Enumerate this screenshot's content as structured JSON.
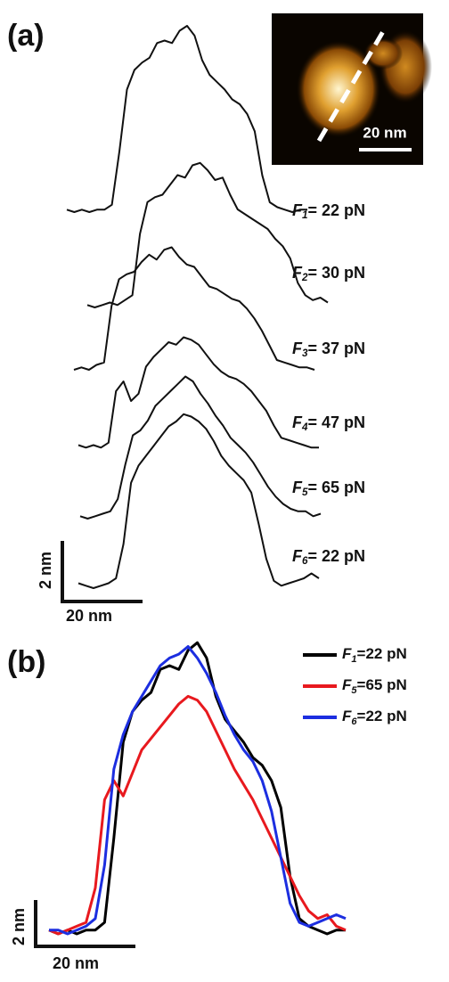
{
  "chart_data": [
    {
      "type": "profile-stack",
      "panel_label": "(a)",
      "scale_bar_y": "2 nm",
      "scale_bar_x": "20 nm",
      "inset_scale_bar": "20 nm",
      "series": [
        {
          "label": {
            "symbol": "F",
            "subscript": "1",
            "text": "= 22 pN"
          },
          "color": "#111111",
          "values": [
            0.1,
            0,
            0.1,
            0,
            0.1,
            0.1,
            0.3,
            2.5,
            5.0,
            5.8,
            6.1,
            6.3,
            6.9,
            7.0,
            6.9,
            7.4,
            7.6,
            7.2,
            6.2,
            5.6,
            5.3,
            5.0,
            4.6,
            4.4,
            4.0,
            3.3,
            1.5,
            0.4,
            0.2,
            0.1,
            0,
            0.1,
            0.1
          ]
        },
        {
          "label": {
            "symbol": "F",
            "subscript": "2",
            "text": "= 30 pN"
          },
          "color": "#111111",
          "values": [
            0.1,
            0,
            0.1,
            0.2,
            0.1,
            0.3,
            0.5,
            3.0,
            4.3,
            4.5,
            4.6,
            5.0,
            5.4,
            5.3,
            5.8,
            5.9,
            5.6,
            5.2,
            5.3,
            4.6,
            4.0,
            3.8,
            3.6,
            3.4,
            3.2,
            2.8,
            2.5,
            2.0,
            1.0,
            0.5,
            0.3,
            0.4,
            0.2
          ]
        },
        {
          "label": {
            "symbol": "F",
            "subscript": "3",
            "text": "= 37 pN"
          },
          "color": "#111111",
          "values": [
            0,
            0.1,
            0,
            0.2,
            0.3,
            2.6,
            3.7,
            3.9,
            4.0,
            4.4,
            4.7,
            4.5,
            4.9,
            5.0,
            4.6,
            4.3,
            4.2,
            3.8,
            3.4,
            3.3,
            3.1,
            2.9,
            2.8,
            2.5,
            2.1,
            1.6,
            1.0,
            0.4,
            0.3,
            0.2,
            0.1,
            0.1,
            0
          ]
        },
        {
          "label": {
            "symbol": "F",
            "subscript": "4",
            "text": "= 47 pN"
          },
          "color": "#111111",
          "values": [
            0.2,
            0.1,
            0.2,
            0.1,
            0.3,
            2.4,
            2.8,
            2.0,
            2.3,
            3.4,
            3.8,
            4.1,
            4.4,
            4.3,
            4.6,
            4.5,
            4.3,
            3.9,
            3.5,
            3.2,
            3.0,
            2.9,
            2.7,
            2.4,
            2.0,
            1.6,
            1.0,
            0.5,
            0.4,
            0.3,
            0.2,
            0.1,
            0.1
          ]
        },
        {
          "label": {
            "symbol": "F",
            "subscript": "5",
            "text": "= 65 pN"
          },
          "color": "#111111",
          "values": [
            0.1,
            0,
            0.1,
            0.2,
            0.3,
            0.8,
            2.2,
            3.4,
            3.6,
            4.0,
            4.6,
            4.9,
            5.2,
            5.5,
            5.8,
            5.6,
            5.1,
            4.7,
            4.2,
            3.8,
            3.3,
            3.0,
            2.7,
            2.3,
            1.8,
            1.3,
            0.9,
            0.6,
            0.4,
            0.3,
            0.3,
            0.1,
            0.2
          ]
        },
        {
          "label": {
            "symbol": "F",
            "subscript": "6",
            "text": "= 22 pN"
          },
          "color": "#111111",
          "values": [
            0.2,
            0.1,
            0,
            0.1,
            0.2,
            0.4,
            1.8,
            4.3,
            5.0,
            5.4,
            5.8,
            6.2,
            6.6,
            6.8,
            7.1,
            7.0,
            6.8,
            6.5,
            6.0,
            5.4,
            5.0,
            4.7,
            4.4,
            3.9,
            2.6,
            1.2,
            0.3,
            0.1,
            0.2,
            0.3,
            0.4,
            0.6,
            0.4
          ]
        }
      ]
    },
    {
      "type": "profile-overlay",
      "panel_label": "(b)",
      "scale_bar_y": "2 nm",
      "scale_bar_x": "20 nm",
      "series": [
        {
          "label": {
            "symbol": "F",
            "subscript": "1",
            "text": "=22 pN"
          },
          "color": "#000000",
          "values": [
            0.1,
            0,
            0.1,
            0,
            0.1,
            0.1,
            0.3,
            2.5,
            5.0,
            5.8,
            6.1,
            6.3,
            6.9,
            7.0,
            6.9,
            7.4,
            7.6,
            7.2,
            6.2,
            5.6,
            5.3,
            5.0,
            4.6,
            4.4,
            4.0,
            3.3,
            1.5,
            0.4,
            0.2,
            0.1,
            0,
            0.1,
            0.1
          ]
        },
        {
          "label": {
            "symbol": "F",
            "subscript": "5",
            "text": "=65 pN"
          },
          "color": "#e8191e",
          "values": [
            0.1,
            0,
            0.1,
            0.2,
            0.3,
            1.2,
            3.5,
            4.0,
            3.6,
            4.2,
            4.8,
            5.1,
            5.4,
            5.7,
            6.0,
            6.2,
            6.1,
            5.8,
            5.3,
            4.8,
            4.3,
            3.9,
            3.5,
            3.0,
            2.5,
            2.0,
            1.5,
            1.0,
            0.6,
            0.4,
            0.5,
            0.2,
            0.1
          ]
        },
        {
          "label": {
            "symbol": "F",
            "subscript": "6",
            "text": "=22 pN"
          },
          "color": "#1c2ee0",
          "values": [
            0.1,
            0.1,
            0,
            0.1,
            0.2,
            0.4,
            1.8,
            4.3,
            5.2,
            5.8,
            6.2,
            6.6,
            7.0,
            7.2,
            7.3,
            7.5,
            7.2,
            6.8,
            6.3,
            5.7,
            5.2,
            4.8,
            4.5,
            4.0,
            3.2,
            2.0,
            0.8,
            0.3,
            0.2,
            0.3,
            0.4,
            0.5,
            0.4
          ]
        }
      ]
    }
  ]
}
